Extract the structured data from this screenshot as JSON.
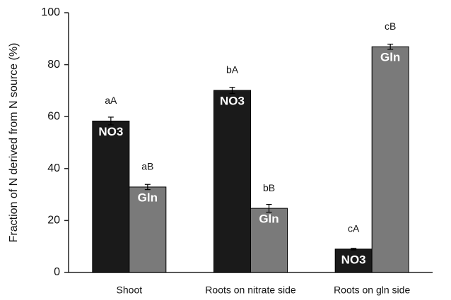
{
  "chart_data": {
    "type": "bar",
    "y_label": "Fraction of N derived from N source (%)",
    "categories": [
      "Shoot",
      "Roots on nitrate side",
      "Roots on gln side"
    ],
    "series": [
      {
        "name": "NO3",
        "color": "#1a1a1a",
        "values": [
          58.3,
          70.1,
          9.0
        ],
        "errors": [
          1.5,
          1.2,
          0.3
        ],
        "letters": [
          "aA",
          "bA",
          "cA"
        ]
      },
      {
        "name": "Gln",
        "color": "#7a7a7a",
        "values": [
          32.9,
          24.7,
          86.9
        ],
        "errors": [
          1.0,
          1.5,
          1.0
        ],
        "letters": [
          "aB",
          "bB",
          "cB"
        ]
      }
    ],
    "ylim": [
      0,
      100
    ],
    "yticks": [
      0,
      20,
      40,
      60,
      80,
      100
    ]
  }
}
